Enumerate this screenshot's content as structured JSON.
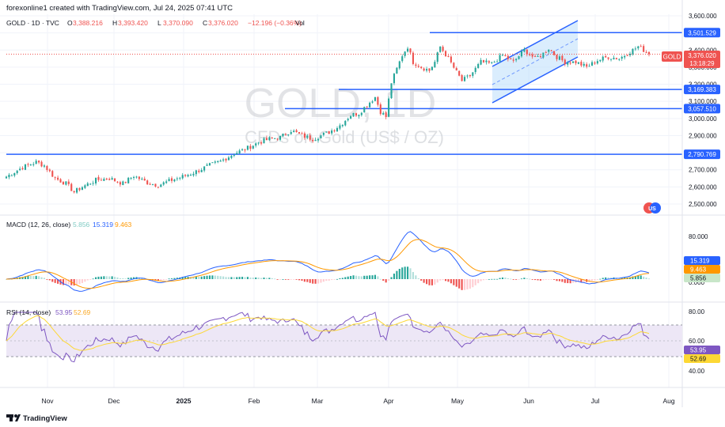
{
  "header": {
    "attribution": "forexonline1 created with TradingView.com, Jul 24, 2025 07:41 UTC",
    "symbol_line": "GOLD · 1D · TVC",
    "ohlc": [
      {
        "k": "O",
        "v": "3,388.216"
      },
      {
        "k": "H",
        "v": "3,393.420"
      },
      {
        "k": "L",
        "v": "3,370.090"
      },
      {
        "k": "C",
        "v": "3,376.020"
      }
    ],
    "change": "−12.196 (−0.36%)",
    "vol": "Vol"
  },
  "watermark": {
    "title": "GOLD, 1D",
    "subtitle": "CFDs on Gold (US$ / OZ)"
  },
  "footer": {
    "brand": "TradingView"
  },
  "colors": {
    "up": "#26a69a",
    "down": "#ef5350",
    "level_line": "#2962ff",
    "channel_fill": "#bbdefb",
    "macd_line": "#2962ff",
    "signal_line": "#ff9800",
    "rsi_line": "#7e57c2",
    "rsi_ma": "#fdd835",
    "rsi_band": "#ede7f6"
  },
  "price_axis": {
    "ticks": [
      "3,600.000",
      "3,500.000",
      "3,400.000",
      "3,300.000",
      "3,200.000",
      "3,100.000",
      "3,000.000",
      "2,900.000",
      "2,800.000",
      "2,700.000",
      "2,600.000",
      "2,500.000"
    ]
  },
  "time_axis": {
    "labels": [
      "Nov",
      "Dec",
      "2025",
      "Feb",
      "Mar",
      "Apr",
      "May",
      "Jun",
      "Jul",
      "Aug"
    ]
  },
  "levels": [
    {
      "name": "resistance-level",
      "value": 3501.529,
      "label": "3,501.529"
    },
    {
      "name": "support-level-1",
      "value": 3169.383,
      "label": "3,169.383"
    },
    {
      "name": "support-level-2",
      "value": 3057.51,
      "label": "3,057.510"
    },
    {
      "name": "support-level-3",
      "value": 2790.769,
      "label": "2,790.769"
    }
  ],
  "current_price": {
    "symbol": "GOLD",
    "value": "3,376.020",
    "countdown": "13:18:29"
  },
  "macd": {
    "title": "MACD (12, 26, close)",
    "values": [
      "5.856",
      "15.319",
      "9.463"
    ],
    "axis_tick": "80.000",
    "axis_tick_low": "0.000"
  },
  "rsi": {
    "title": "RSI (14, close)",
    "values": [
      "53.95",
      "52.69"
    ],
    "axis_ticks": [
      "80.00",
      "60.00",
      "40.00"
    ]
  },
  "chart_data": {
    "type": "candlestick",
    "title": "GOLD, 1D",
    "subtitle": "CFDs on Gold (US$ / OZ)",
    "x_labels": [
      "Nov",
      "Dec",
      "2025",
      "Feb",
      "Mar",
      "Apr",
      "May",
      "Jun",
      "Jul",
      "Aug"
    ],
    "ylim": [
      2470,
      3610
    ],
    "price_path": [
      [
        0,
        2660
      ],
      [
        6,
        2715
      ],
      [
        11,
        2745
      ],
      [
        14,
        2725
      ],
      [
        18,
        2650
      ],
      [
        22,
        2620
      ],
      [
        25,
        2570
      ],
      [
        28,
        2600
      ],
      [
        33,
        2640
      ],
      [
        38,
        2650
      ],
      [
        43,
        2620
      ],
      [
        47,
        2665
      ],
      [
        52,
        2625
      ],
      [
        56,
        2610
      ],
      [
        61,
        2640
      ],
      [
        65,
        2660
      ],
      [
        70,
        2690
      ],
      [
        74,
        2720
      ],
      [
        79,
        2750
      ],
      [
        84,
        2795
      ],
      [
        88,
        2820
      ],
      [
        93,
        2860
      ],
      [
        97,
        2880
      ],
      [
        101,
        2890
      ],
      [
        105,
        2930
      ],
      [
        109,
        2900
      ],
      [
        113,
        2880
      ],
      [
        116,
        2900
      ],
      [
        119,
        2920
      ],
      [
        123,
        2960
      ],
      [
        127,
        3020
      ],
      [
        130,
        3030
      ],
      [
        133,
        3080
      ],
      [
        136,
        3125
      ],
      [
        138,
        3040
      ],
      [
        140,
        3010
      ],
      [
        142,
        3210
      ],
      [
        144,
        3290
      ],
      [
        146,
        3370
      ],
      [
        148,
        3420
      ],
      [
        150,
        3330
      ],
      [
        153,
        3300
      ],
      [
        156,
        3280
      ],
      [
        158,
        3330
      ],
      [
        160,
        3420
      ],
      [
        163,
        3350
      ],
      [
        166,
        3270
      ],
      [
        168,
        3220
      ],
      [
        171,
        3250
      ],
      [
        175,
        3330
      ],
      [
        179,
        3320
      ],
      [
        183,
        3370
      ],
      [
        187,
        3330
      ],
      [
        191,
        3400
      ],
      [
        195,
        3350
      ],
      [
        198,
        3380
      ],
      [
        200,
        3410
      ],
      [
        203,
        3360
      ],
      [
        206,
        3330
      ],
      [
        210,
        3330
      ],
      [
        214,
        3300
      ],
      [
        218,
        3340
      ],
      [
        222,
        3360
      ],
      [
        226,
        3350
      ],
      [
        230,
        3390
      ],
      [
        233,
        3420
      ],
      [
        235,
        3400
      ],
      [
        237,
        3376
      ]
    ],
    "levels": [
      3501.529,
      3169.383,
      3057.51,
      2790.769
    ],
    "macd": {
      "macd": 15.319,
      "signal": 9.463,
      "histogram": 5.856
    },
    "rsi": {
      "rsi": 53.95,
      "ma": 52.69,
      "bands": [
        30,
        70
      ]
    }
  }
}
